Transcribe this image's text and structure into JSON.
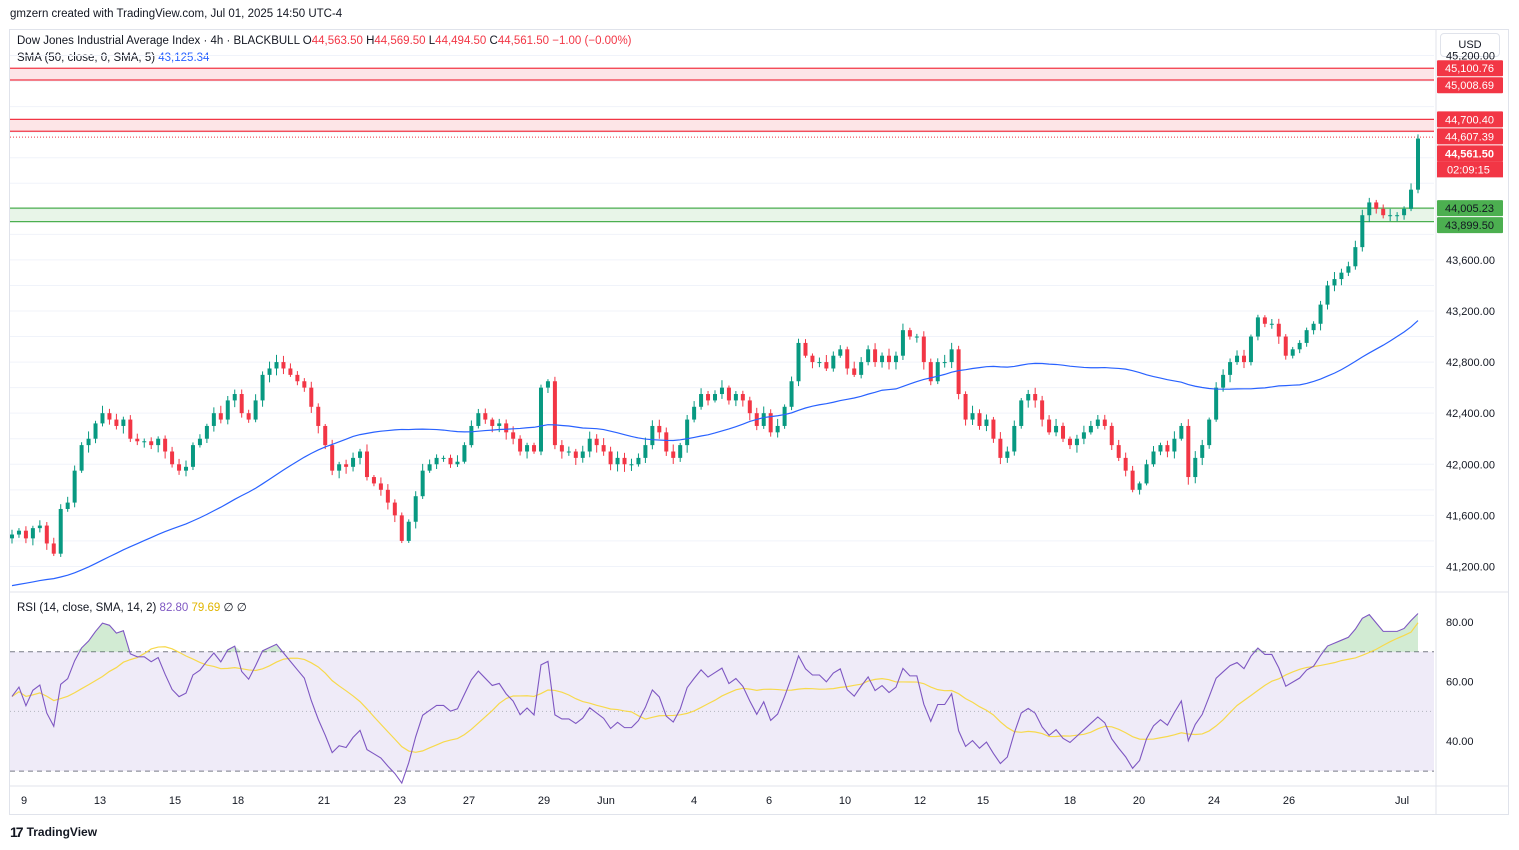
{
  "caption": "gmzern created with TradingView.com, Jul 01, 2025 14:50 UTC-4",
  "header": {
    "symbol": "Dow Jones Industrial Average Index · 4h · BLACKBULL",
    "o_label": "O",
    "o_value": "44,563.50",
    "h_label": "H",
    "h_value": "44,569.50",
    "l_label": "L",
    "l_value": "44,494.50",
    "c_label": "C",
    "c_value": "44,561.50",
    "change": "−1.00 (−0.00%)",
    "sma_label": "SMA (50, close, 0, SMA, 5)",
    "sma_value": "43,125.34"
  },
  "rsi_legend": {
    "label": "RSI (14, close, SMA, 14, 2)",
    "rsi_value": "82.80",
    "ma_value": "79.69",
    "extra1": "∅",
    "extra2": "∅"
  },
  "currency": "USD",
  "brand": "TradingView",
  "colors": {
    "up": "#089981",
    "down": "#f23645",
    "sma": "#2962ff",
    "rsi": "#7e57c2",
    "rsi_ma": "#f7d94c",
    "resistance": "#f23645",
    "support": "#4caf50"
  },
  "chart_data": {
    "type": "candlestick",
    "title": "Dow Jones Industrial Average Index · 4h · BLACKBULL",
    "x_ticks": [
      "9",
      "13",
      "15",
      "18",
      "21",
      "23",
      "27",
      "29",
      "Jun",
      "4",
      "6",
      "10",
      "12",
      "15",
      "18",
      "20",
      "24",
      "26",
      "Jul"
    ],
    "price_axis": {
      "ticks": [
        "41,200.00",
        "41,600.00",
        "42,000.00",
        "42,400.00",
        "42,800.00",
        "43,200.00",
        "43,600.00",
        "45,200.00"
      ],
      "tick_values": [
        41200,
        41600,
        42000,
        42400,
        42800,
        43200,
        43600,
        45200
      ],
      "range": [
        41000,
        45400
      ]
    },
    "price_labels": [
      {
        "value": 45100.76,
        "text": "45,100.76",
        "type": "resistance"
      },
      {
        "value": 45008.69,
        "text": "45,008.69",
        "type": "resistance"
      },
      {
        "value": 44700.4,
        "text": "44,700.40",
        "type": "resistance"
      },
      {
        "value": 44607.39,
        "text": "44,607.39",
        "type": "resistance"
      },
      {
        "value": 44561.5,
        "text": "44,561.50",
        "type": "last"
      },
      {
        "value": 44005.23,
        "text": "44,005.23",
        "type": "support"
      },
      {
        "value": 43899.5,
        "text": "43,899.50",
        "type": "support"
      }
    ],
    "countdown": "02:09:15",
    "zones": [
      {
        "type": "resistance",
        "top": 45100.76,
        "bottom": 45008.69
      },
      {
        "type": "resistance",
        "top": 44700.4,
        "bottom": 44607.39
      },
      {
        "type": "support",
        "top": 44005.23,
        "bottom": 43899.5
      }
    ],
    "last_price": 44561.5,
    "closes": [
      41450,
      41480,
      41420,
      41500,
      41520,
      41380,
      41300,
      41650,
      41700,
      41950,
      42150,
      42200,
      42320,
      42400,
      42350,
      42300,
      42350,
      42200,
      42180,
      42180,
      42150,
      42200,
      42100,
      42000,
      41950,
      41980,
      42150,
      42200,
      42300,
      42400,
      42350,
      42500,
      42550,
      42400,
      42350,
      42500,
      42700,
      42750,
      42800,
      42750,
      42700,
      42650,
      42600,
      42450,
      42300,
      42150,
      41950,
      42000,
      41980,
      42050,
      42100,
      41900,
      41850,
      41800,
      41700,
      41600,
      41400,
      41550,
      41750,
      41950,
      42000,
      42050,
      42050,
      42000,
      42020,
      42150,
      42300,
      42400,
      42350,
      42300,
      42320,
      42250,
      42200,
      42100,
      42150,
      42100,
      42600,
      42650,
      42150,
      42100,
      42100,
      42050,
      42100,
      42200,
      42150,
      42100,
      42000,
      42050,
      42000,
      42000,
      42050,
      42150,
      42300,
      42250,
      42100,
      42050,
      42150,
      42350,
      42450,
      42550,
      42500,
      42550,
      42600,
      42500,
      42550,
      42500,
      42400,
      42300,
      42400,
      42250,
      42300,
      42450,
      42650,
      42950,
      42850,
      42800,
      42800,
      42750,
      42850,
      42900,
      42750,
      42700,
      42800,
      42900,
      42800,
      42850,
      42800,
      42850,
      43050,
      43000,
      43000,
      42800,
      42650,
      42800,
      42800,
      42900,
      42550,
      42350,
      42400,
      42300,
      42350,
      42200,
      42050,
      42100,
      42300,
      42500,
      42550,
      42500,
      42350,
      42250,
      42300,
      42200,
      42150,
      42200,
      42250,
      42300,
      42350,
      42300,
      42150,
      42050,
      41950,
      41800,
      41850,
      42000,
      42100,
      42150,
      42100,
      42200,
      42300,
      41900,
      42050,
      42150,
      42350,
      42600,
      42700,
      42800,
      42850,
      42800,
      43000,
      43150,
      43100,
      43100,
      43000,
      42850,
      42900,
      42950,
      43050,
      43100,
      43250,
      43400,
      43450,
      43500,
      43550,
      43700,
      43950,
      44050,
      44000,
      43950,
      43950,
      43950,
      44000,
      44150,
      44550
    ],
    "sma50_start": 41050,
    "sma50_end": 43125.34,
    "rsi_axis": {
      "ticks": [
        "40.00",
        "60.00",
        "80.00"
      ],
      "tick_values": [
        40,
        60,
        80
      ],
      "range": [
        25,
        90
      ],
      "upper": 70,
      "mid": 50,
      "lower": 30
    },
    "rsi_last": 82.8,
    "rsi_ma_last": 79.69
  }
}
